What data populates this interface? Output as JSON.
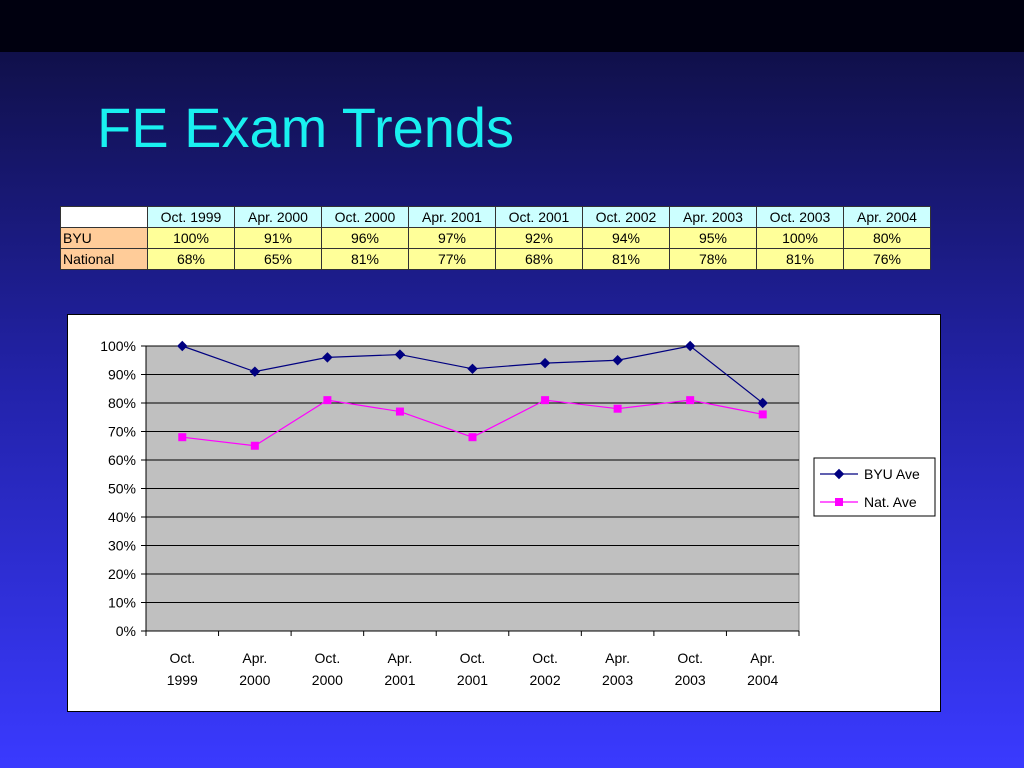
{
  "slide": {
    "title": "FE Exam Trends"
  },
  "table": {
    "columns": [
      "Oct. 1999",
      "Apr. 2000",
      "Oct. 2000",
      "Apr. 2001",
      "Oct. 2001",
      "Oct. 2002",
      "Apr. 2003",
      "Oct. 2003",
      "Apr. 2004"
    ],
    "rows": [
      {
        "label": "BYU",
        "values": [
          "100%",
          "91%",
          "96%",
          "97%",
          "92%",
          "94%",
          "95%",
          "100%",
          "80%"
        ]
      },
      {
        "label": "National",
        "values": [
          "68%",
          "65%",
          "81%",
          "77%",
          "68%",
          "81%",
          "78%",
          "81%",
          "76%"
        ]
      }
    ]
  },
  "chart_data": {
    "type": "line",
    "categories": [
      [
        "Oct.",
        "1999"
      ],
      [
        "Apr.",
        "2000"
      ],
      [
        "Oct.",
        "2000"
      ],
      [
        "Apr.",
        "2001"
      ],
      [
        "Oct.",
        "2001"
      ],
      [
        "Oct.",
        "2002"
      ],
      [
        "Apr.",
        "2003"
      ],
      [
        "Oct.",
        "2003"
      ],
      [
        "Apr.",
        "2004"
      ]
    ],
    "series": [
      {
        "name": "BYU Ave",
        "values": [
          100,
          91,
          96,
          97,
          92,
          94,
          95,
          100,
          80
        ],
        "color": "#000080",
        "marker": "diamond"
      },
      {
        "name": "Nat. Ave",
        "values": [
          68,
          65,
          81,
          77,
          68,
          81,
          78,
          81,
          76
        ],
        "color": "#ff00ff",
        "marker": "square"
      }
    ],
    "ylim": [
      0,
      100
    ],
    "yticks": [
      "0%",
      "10%",
      "20%",
      "30%",
      "40%",
      "50%",
      "60%",
      "70%",
      "80%",
      "90%",
      "100%"
    ],
    "plot_background": "#c0c0c0",
    "grid": true,
    "legend": "right"
  }
}
